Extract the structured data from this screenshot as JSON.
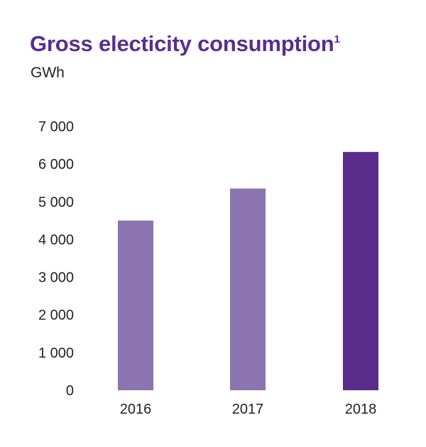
{
  "chart_data": {
    "type": "bar",
    "title": "Gross electicity consumption",
    "title_footnote": "1",
    "ylabel": "GWh",
    "xlabel": "",
    "categories": [
      "2016",
      "2017",
      "2018"
    ],
    "values": [
      4500,
      5350,
      6320
    ],
    "ylim": [
      0,
      7000
    ],
    "yticks": [
      0,
      1000,
      2000,
      3000,
      4000,
      5000,
      6000,
      7000
    ],
    "ytick_labels": [
      "0",
      "1 000",
      "2 000",
      "3 000",
      "4 000",
      "5 000",
      "6 000",
      "7 000"
    ],
    "grid": false,
    "legend": "none",
    "colors": {
      "title": "#5a2d91",
      "bar_light": "#8b74b0",
      "bar_highlight": "#5a2d8c",
      "text": "#222222"
    },
    "highlight_index": 2
  }
}
